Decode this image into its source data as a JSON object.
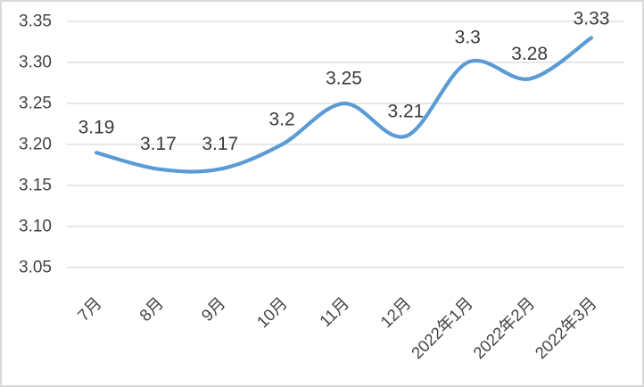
{
  "chart_data": {
    "type": "line",
    "smooth": true,
    "markers": false,
    "title": "",
    "xlabel": "",
    "ylabel": "",
    "legend": "none",
    "grid": "horizontal",
    "categories": [
      "7月",
      "8月",
      "9月",
      "10月",
      "11月",
      "12月",
      "2022年1月",
      "2022年2月",
      "2022年3月"
    ],
    "values": [
      3.19,
      3.17,
      3.17,
      3.2,
      3.25,
      3.21,
      3.3,
      3.28,
      3.33
    ],
    "data_labels": [
      "3.19",
      "3.17",
      "3.17",
      "3.2",
      "3.25",
      "3.21",
      "3.3",
      "3.28",
      "3.33"
    ],
    "y_axis": {
      "tick_labels": [
        "3.35",
        "3.30",
        "3.25",
        "3.20",
        "3.15",
        "3.10",
        "3.05"
      ],
      "min": 3.05,
      "max": 3.35,
      "step": 0.05
    },
    "colors": {
      "line": "#5B9BD5",
      "gridline": "#D9D9D9",
      "axis_text": "#444444",
      "data_label_text": "#3A3A3A",
      "background": "#FFFFFF",
      "frame_border": "#D9D9D9"
    }
  }
}
